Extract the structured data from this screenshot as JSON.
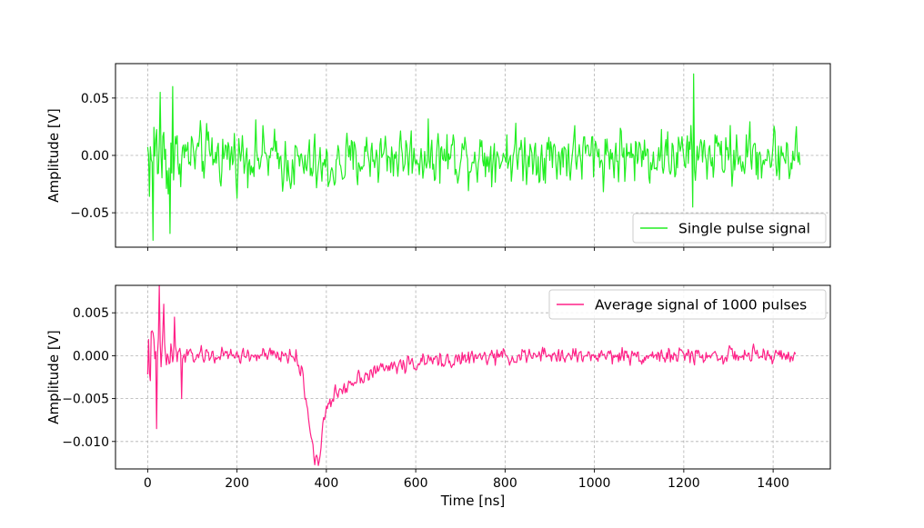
{
  "chart_data": [
    {
      "type": "line",
      "title": "",
      "xlabel": "",
      "ylabel": "Amplitude [V]",
      "xlim": [
        -72,
        1528
      ],
      "ylim": [
        -0.08,
        0.08
      ],
      "xticks": [
        0,
        200,
        400,
        600,
        800,
        1000,
        1200,
        1400
      ],
      "yticks": [
        -0.05,
        0.0,
        0.05
      ],
      "ytick_labels": [
        "−0.05",
        "0.00",
        "0.05"
      ],
      "grid": true,
      "legend_position": "lower right",
      "series": [
        {
          "name": "Single pulse signal",
          "color": "#22ee22",
          "x_range": [
            0,
            1460
          ],
          "sample_step_ns": 2,
          "baseline_points": [
            [
              0,
              0
            ],
            [
              100,
              0
            ],
            [
              250,
              0
            ],
            [
              300,
              -0.005
            ],
            [
              400,
              -0.012
            ],
            [
              500,
              0
            ],
            [
              1460,
              0
            ]
          ],
          "noise_amplitude": 0.016,
          "notable_points": [
            [
              12,
              0.06
            ],
            [
              12,
              -0.074
            ],
            [
              28,
              0.055
            ],
            [
              50,
              -0.068
            ],
            [
              55,
              0.06
            ],
            [
              1222,
              0.071
            ],
            [
              1220,
              -0.045
            ]
          ]
        }
      ]
    },
    {
      "type": "line",
      "title": "",
      "xlabel": "Time [ns]",
      "ylabel": "Amplitude [V]",
      "xlim": [
        -72,
        1528
      ],
      "ylim": [
        -0.0132,
        0.0082
      ],
      "xticks": [
        0,
        200,
        400,
        600,
        800,
        1000,
        1200,
        1400
      ],
      "xtick_labels": [
        "0",
        "200",
        "400",
        "600",
        "800",
        "1000",
        "1200",
        "1400"
      ],
      "yticks": [
        -0.01,
        -0.005,
        0.0,
        0.005
      ],
      "ytick_labels": [
        "−0.010",
        "−0.005",
        "0.000",
        "0.005"
      ],
      "grid": true,
      "legend_position": "upper right",
      "series": [
        {
          "name": "Average signal of 1000 pulses",
          "color": "#ff2288",
          "x_range": [
            0,
            1450
          ],
          "sample_step_ns": 2,
          "baseline_points": [
            [
              0,
              0
            ],
            [
              330,
              0
            ],
            [
              345,
              -0.002
            ],
            [
              360,
              -0.007
            ],
            [
              372,
              -0.0115
            ],
            [
              382,
              -0.0128
            ],
            [
              395,
              -0.007
            ],
            [
              420,
              -0.0045
            ],
            [
              470,
              -0.0025
            ],
            [
              540,
              -0.0013
            ],
            [
              620,
              -0.0007
            ],
            [
              750,
              -0.0002
            ],
            [
              900,
              0
            ],
            [
              1450,
              0
            ]
          ],
          "noise_amplitude": 0.0006,
          "notable_points": [
            [
              25,
              0.0082
            ],
            [
              20,
              -0.0085
            ],
            [
              35,
              0.006
            ],
            [
              60,
              0.0045
            ],
            [
              75,
              -0.005
            ],
            [
              382,
              -0.0128
            ]
          ]
        }
      ]
    }
  ]
}
